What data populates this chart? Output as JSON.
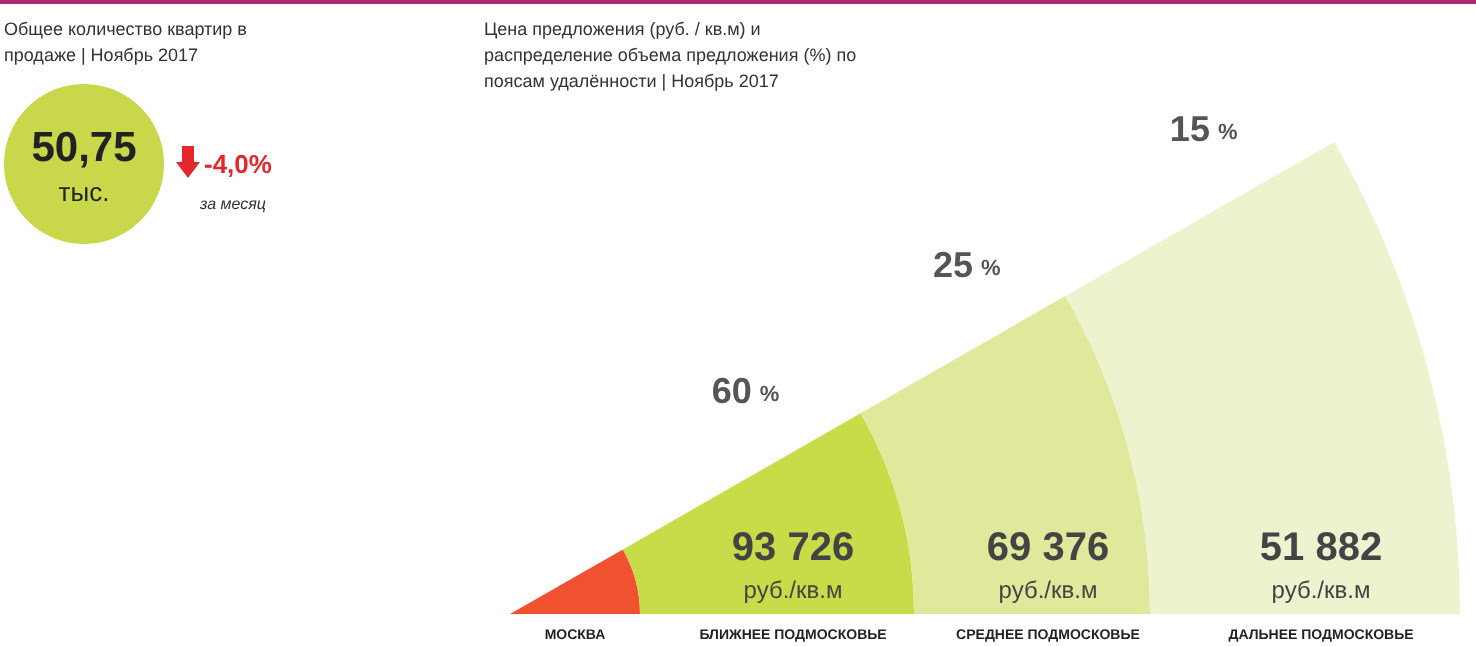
{
  "chart_data": [
    {
      "type": "other",
      "title": "Общее количество квартир в продаже | Ноябрь 2017",
      "value_labels": [
        "50,75",
        "-4,0%"
      ],
      "annotations": [
        "тыс.",
        "за месяц"
      ],
      "colors": [
        "#c8d84a",
        "#e5262b"
      ]
    },
    {
      "type": "other",
      "title": "Цена предложения (руб. / кв.м) и распределение объема предложения (%) по поясам удалённости | Ноябрь 2017",
      "categories": [
        "МОСКВА",
        "БЛИЖНЕЕ ПОДМОСКОВЬЕ",
        "СРЕДНЕЕ ПОДМОСКОВЬЕ",
        "ДАЛЬНЕЕ ПОДМОСКОВЬЕ"
      ],
      "ylabel": "руб./кв.м",
      "annotations": [
        "%"
      ],
      "data_labels": true,
      "series": [
        {
          "colors": [
            "#ef5131",
            "#c8dc4a",
            "#dfe89b",
            "#eef3cf"
          ],
          "values": [
            null,
            93726,
            69376,
            51882
          ]
        },
        {
          "values": [
            null,
            60,
            25,
            15
          ]
        }
      ]
    }
  ]
}
